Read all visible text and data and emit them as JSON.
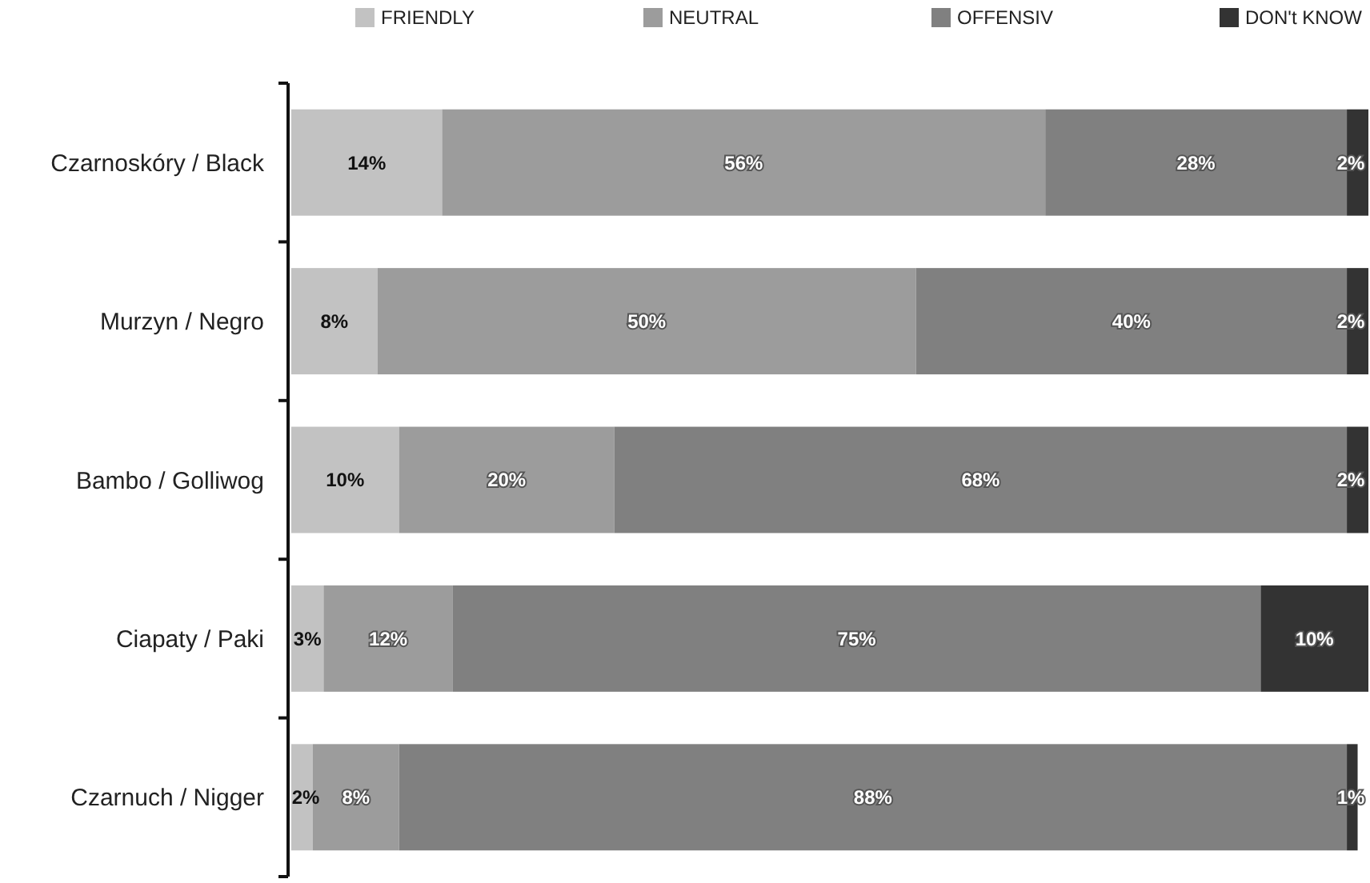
{
  "chart_data": {
    "type": "bar",
    "orientation": "horizontal",
    "stacked": true,
    "legend": "top",
    "tick_labels": "y",
    "xlim": [
      0,
      100
    ],
    "categories": [
      "Czarnoskóry / Black",
      "Murzyn / Negro",
      "Bambo / Golliwog",
      "Ciapaty / Paki",
      "Czarnuch / Nigger"
    ],
    "series": [
      {
        "name": "FRIENDLY",
        "color": "#c2c2c2",
        "values": [
          14,
          8,
          10,
          3,
          2
        ],
        "value_labels": [
          "14%",
          "8%",
          "10%",
          "3%",
          "2%"
        ]
      },
      {
        "name": "NEUTRAL",
        "color": "#9c9c9c",
        "values": [
          56,
          50,
          20,
          12,
          8
        ],
        "value_labels": [
          "56%",
          "50%",
          "20%",
          "12%",
          "8%"
        ]
      },
      {
        "name": "OFFENSIV",
        "color": "#808080",
        "values": [
          28,
          40,
          68,
          75,
          88
        ],
        "value_labels": [
          "28%",
          "40%",
          "68%",
          "75%",
          "88%"
        ]
      },
      {
        "name": "DON't KNOW",
        "color": "#333333",
        "values": [
          2,
          2,
          2,
          10,
          1
        ],
        "value_labels": [
          "2%",
          "2%",
          "2%",
          "10%",
          "1%"
        ]
      }
    ]
  }
}
